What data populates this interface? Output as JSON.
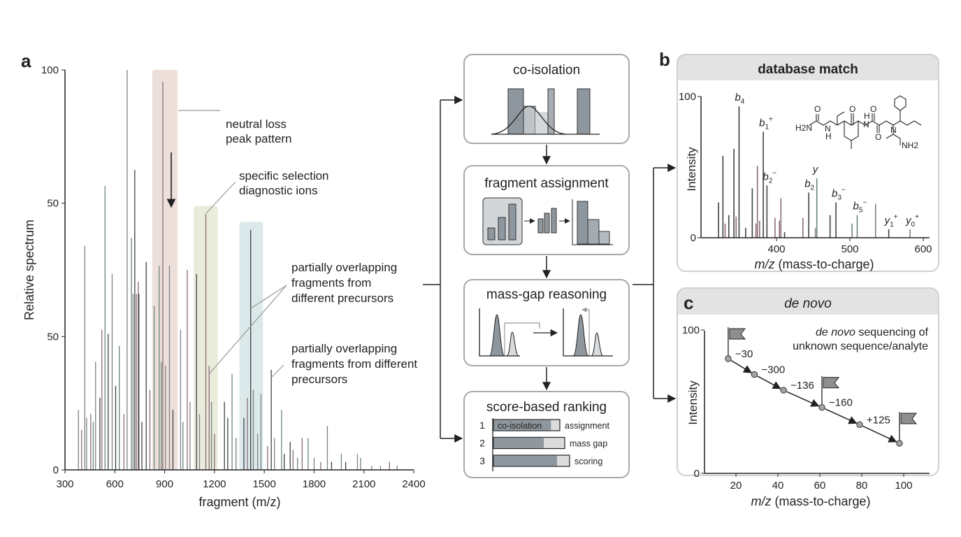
{
  "panel_labels": {
    "a": "a",
    "b": "b",
    "c": "c"
  },
  "colors": {
    "peak_gray": "#7d8287",
    "peak_dark": "#3c4146",
    "peak_mauve": "#8b6b74",
    "peak_green": "#6d8479",
    "shade_pink": "#ead9d3",
    "shade_green": "#e5e7d5",
    "shade_blue": "#d6e5e8",
    "box_border": "#a9a9a9",
    "header_gray": "#e3e3e3",
    "bar_fill": "#8f979e"
  },
  "chart_data": [
    {
      "type": "bar",
      "panel": "a",
      "xlabel": "fragment (m/z)",
      "ylabel": "Relative spectrum",
      "xlim": [
        300,
        2400
      ],
      "ylim": [
        0,
        100
      ],
      "xticks": [
        "300",
        "600",
        "900",
        "1200",
        "1500",
        "1800",
        "2100",
        "2400"
      ],
      "yticks": [
        "0",
        "50",
        "50",
        "100"
      ],
      "highlight_regions": [
        {
          "x": [
            825,
            978
          ],
          "top": 100,
          "color": "pink"
        },
        {
          "x": [
            1075,
            1219
          ],
          "top": 66,
          "color": "green"
        },
        {
          "x": [
            1350,
            1492
          ],
          "top": 62,
          "color": "blue"
        }
      ],
      "peaks": [
        [
          674,
          100
        ],
        [
          889,
          97
        ],
        [
          720,
          75
        ],
        [
          541,
          71
        ],
        [
          419,
          56
        ],
        [
          1148,
          64
        ],
        [
          1418,
          60
        ],
        [
          700,
          58
        ],
        [
          584,
          49
        ],
        [
          741,
          47
        ],
        [
          789,
          52
        ],
        [
          867,
          51
        ],
        [
          929,
          51
        ],
        [
          1036,
          50
        ],
        [
          1092,
          49
        ],
        [
          837,
          41
        ],
        [
          996,
          35
        ],
        [
          522,
          35
        ],
        [
          560,
          34
        ],
        [
          627,
          31
        ],
        [
          484,
          27
        ],
        [
          1168,
          26
        ],
        [
          1542,
          25
        ],
        [
          1306,
          24
        ],
        [
          381,
          15
        ],
        [
          455,
          14
        ],
        [
          605,
          21
        ],
        [
          1604,
          15
        ],
        [
          1880,
          11
        ],
        [
          1728,
          8
        ],
        [
          1656,
          7
        ],
        [
          1964,
          4
        ],
        [
          2061,
          4
        ],
        [
          2254,
          2
        ],
        [
          1377,
          13
        ],
        [
          1434,
          20
        ],
        [
          1480,
          19
        ],
        [
          1398,
          18
        ],
        [
          1260,
          17
        ],
        [
          1182,
          17
        ],
        [
          1053,
          17
        ],
        [
          811,
          20
        ],
        [
          763,
          12
        ],
        [
          1764,
          8
        ],
        [
          1561,
          8
        ],
        [
          1673,
          5
        ],
        [
          1905,
          2
        ],
        [
          2147,
          1
        ],
        [
          710,
          44
        ],
        [
          730,
          44
        ],
        [
          745,
          44
        ],
        [
          880,
          27
        ],
        [
          905,
          26
        ],
        [
          655,
          14
        ],
        [
          510,
          18
        ],
        [
          470,
          12
        ],
        [
          430,
          13
        ],
        [
          400,
          10
        ],
        [
          950,
          15
        ],
        [
          1010,
          12
        ],
        [
          1110,
          14
        ],
        [
          1200,
          9
        ],
        [
          1280,
          13
        ],
        [
          1330,
          8
        ],
        [
          1460,
          9
        ],
        [
          1520,
          6
        ],
        [
          1620,
          4
        ],
        [
          1700,
          3
        ],
        [
          1800,
          3
        ],
        [
          1840,
          2
        ],
        [
          1990,
          2
        ],
        [
          2080,
          3
        ],
        [
          2200,
          1
        ],
        [
          2300,
          1
        ]
      ],
      "annotations": [
        {
          "lines": [
            "neutral loss",
            "peak pattern"
          ]
        },
        {
          "lines": [
            "specific selection",
            "diagnostic ions"
          ]
        },
        {
          "lines": [
            "partially overlapping",
            "fragments from",
            "different precursors"
          ]
        },
        {
          "lines": [
            "partially overlapping",
            "fragments from different",
            "precursors"
          ]
        }
      ]
    },
    {
      "type": "bar",
      "panel": "b",
      "title": "database match",
      "xlabel_italic": "m/z",
      "xlabel_rest": " (mass-to-charge)",
      "ylabel": "Intensity",
      "xlim": [
        297,
        608
      ],
      "ylim": [
        0,
        100
      ],
      "xticks": [
        "400",
        "500",
        "600"
      ],
      "yticks": [
        "0",
        "100"
      ],
      "peaks": [
        [
          349,
          93,
          "dark"
        ],
        [
          382,
          75,
          "dark"
        ],
        [
          327,
          58,
          "dark"
        ],
        [
          342,
          63,
          "dark"
        ],
        [
          374,
          51,
          "mauve"
        ],
        [
          321,
          25,
          "dark"
        ],
        [
          335,
          16,
          "dark"
        ],
        [
          367,
          35,
          "dark"
        ],
        [
          387,
          37,
          "dark"
        ],
        [
          406,
          28,
          "mauve"
        ],
        [
          398,
          14,
          "mauve"
        ],
        [
          444,
          32,
          "dark"
        ],
        [
          455,
          42,
          "green"
        ],
        [
          436,
          14,
          "mauve"
        ],
        [
          481,
          25,
          "dark"
        ],
        [
          473,
          16,
          "dark"
        ],
        [
          510,
          16,
          "green"
        ],
        [
          503,
          10,
          "green"
        ],
        [
          535,
          24,
          "gray"
        ],
        [
          553,
          6,
          "dark"
        ],
        [
          582,
          6,
          "gray"
        ],
        [
          358,
          7,
          "dark"
        ],
        [
          345,
          15,
          "mauve"
        ],
        [
          372,
          10,
          "mauve"
        ],
        [
          377,
          12,
          "mauve"
        ],
        [
          404,
          12,
          "mauve"
        ],
        [
          411,
          4,
          "dark"
        ],
        [
          453,
          7,
          "gray"
        ],
        [
          330,
          10,
          "mauve"
        ]
      ],
      "ion_labels": [
        {
          "mz": 349,
          "y": 93,
          "base": "b",
          "sub": "4",
          "sup": ""
        },
        {
          "mz": 382,
          "y": 75,
          "base": "b",
          "sub": "1",
          "sup": "+"
        },
        {
          "mz": 387,
          "y": 37,
          "base": "b",
          "sub": "2",
          "sup": "−"
        },
        {
          "mz": 455,
          "y": 42,
          "base": "y",
          "sub": "",
          "sup": ""
        },
        {
          "mz": 444,
          "y": 32,
          "base": "b",
          "sub": "2",
          "sup": ""
        },
        {
          "mz": 481,
          "y": 25,
          "base": "b",
          "sub": "3",
          "sup": "−"
        },
        {
          "mz": 510,
          "y": 16,
          "base": "b",
          "sub": "5",
          "sup": "−"
        },
        {
          "mz": 553,
          "y": 6,
          "base": "y",
          "sub": "1",
          "sup": "+"
        },
        {
          "mz": 582,
          "y": 6,
          "base": "y",
          "sub": "0",
          "sup": "+"
        }
      ],
      "structure_labels": [
        "H2N",
        "N",
        "H",
        "O",
        "O",
        "N",
        "H",
        "O",
        "O",
        "N",
        "NH2"
      ]
    },
    {
      "type": "line",
      "panel": "c",
      "title": "de novo",
      "note_italic": "de novo",
      "note_rest": " sequencing of",
      "note_line2": "unknown sequence/analyte",
      "xlabel_italic": "m/z",
      "xlabel_rest": " (mass-to-charge)",
      "ylabel": "Intensity",
      "xlim": [
        5,
        113
      ],
      "ylim": [
        0,
        100
      ],
      "xticks": [
        "20",
        "40",
        "60",
        "80",
        "100"
      ],
      "yticks": [
        "0",
        "100"
      ],
      "x": [
        16.3,
        28.8,
        42.7,
        61,
        79,
        98
      ],
      "y": [
        80,
        69,
        58,
        46,
        34,
        21
      ],
      "gap_labels": [
        "−30",
        "−300",
        "−136",
        "−160",
        "+125"
      ],
      "flag_points": [
        0,
        3,
        5
      ]
    }
  ],
  "workflow": {
    "steps": [
      {
        "title": "co-isolation"
      },
      {
        "title": "fragment assignment"
      },
      {
        "title": "mass-gap reasoning"
      },
      {
        "title": "score-based ranking"
      }
    ],
    "ranking": {
      "rows": [
        {
          "rank": "1",
          "label": "assignment",
          "inner_label": "co-isolation",
          "fill": 0.86
        },
        {
          "rank": "2",
          "label": "mass gap",
          "inner_label": "",
          "fill": 0.7
        },
        {
          "rank": "3",
          "label": "scoring",
          "inner_label": "",
          "fill": 0.83
        }
      ]
    }
  }
}
